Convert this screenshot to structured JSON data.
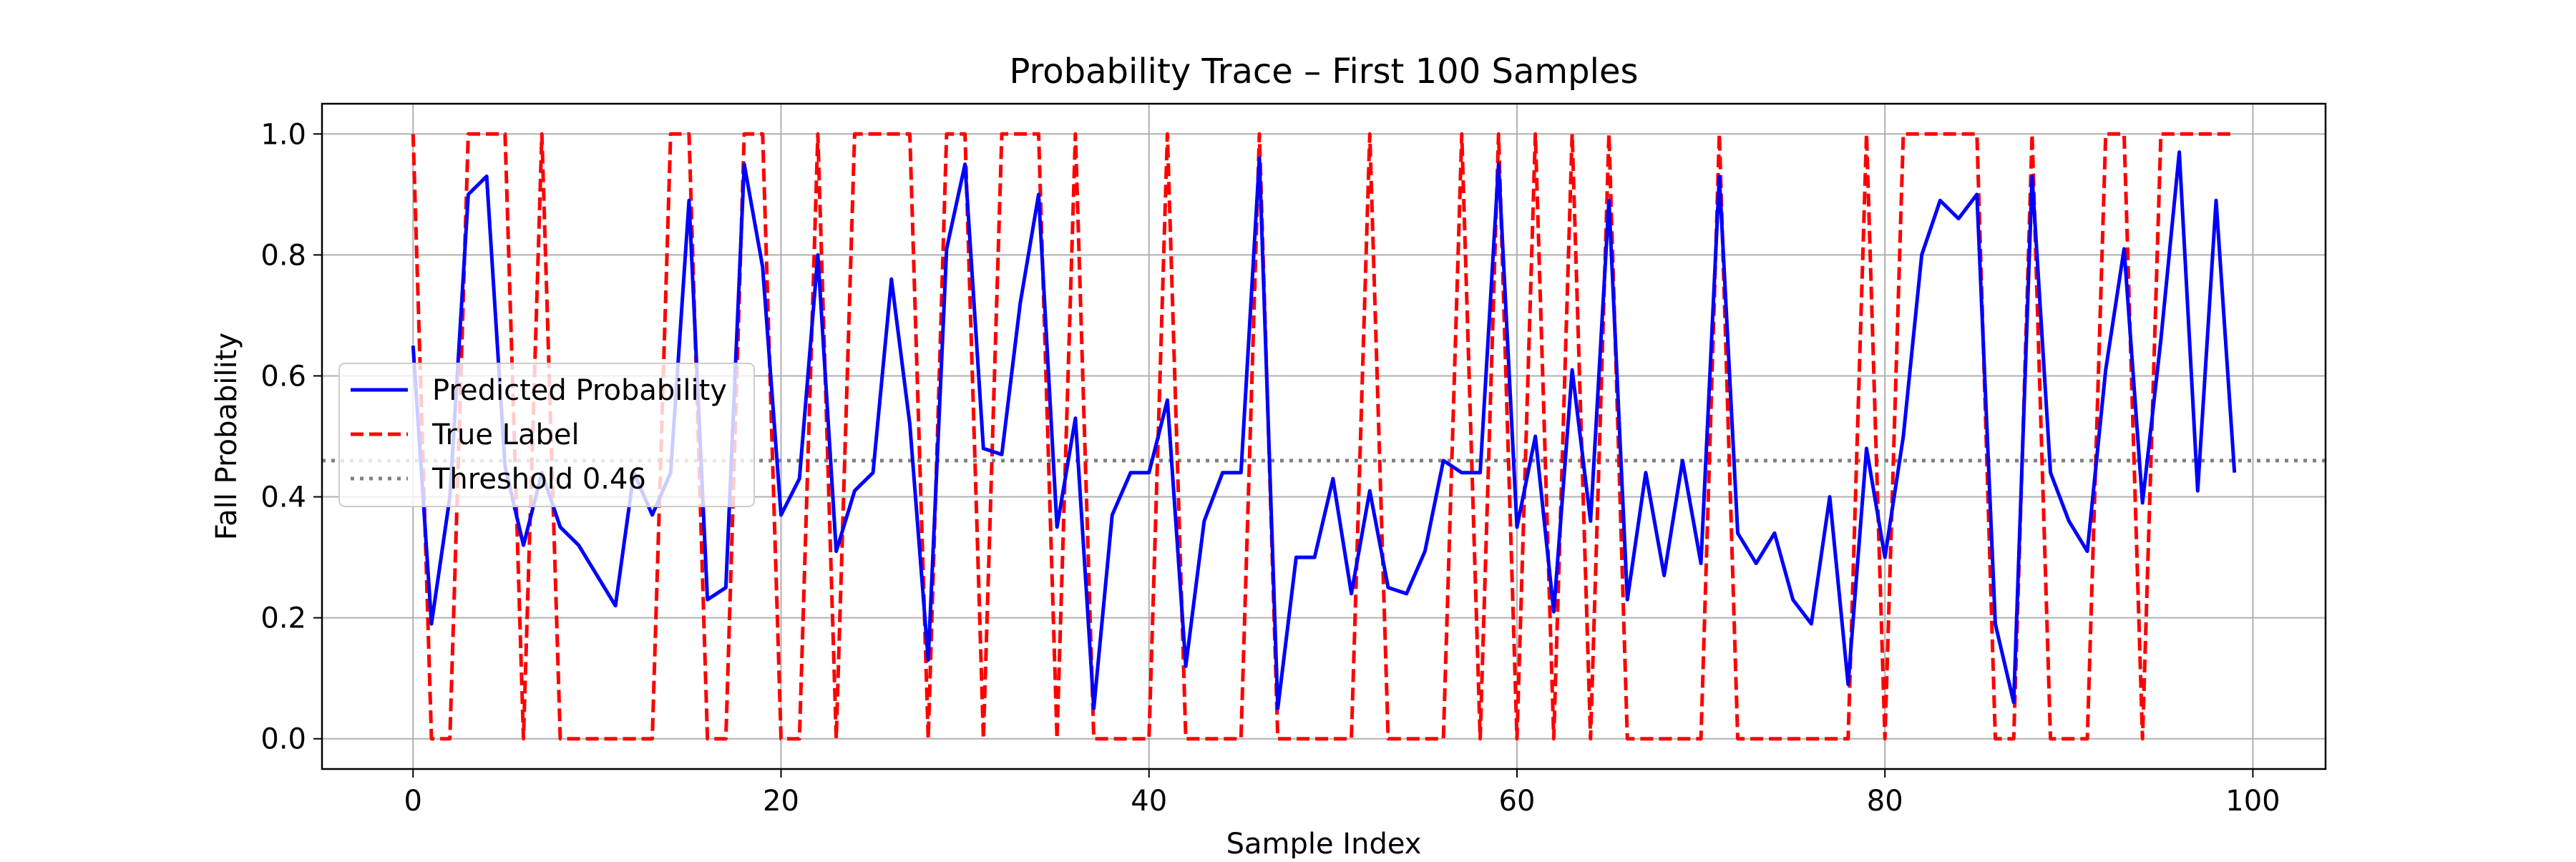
{
  "chart_data": {
    "type": "line",
    "title": "Probability Trace – First 100 Samples",
    "xlabel": "Sample Index",
    "ylabel": "Fall Probability",
    "xlim": [
      -4.95,
      103.95
    ],
    "ylim": [
      -0.05,
      1.05
    ],
    "x_ticks": [
      0,
      20,
      40,
      60,
      80,
      100
    ],
    "y_ticks": [
      0.0,
      0.2,
      0.4,
      0.6,
      0.8,
      1.0
    ],
    "x_tick_labels": [
      "0",
      "20",
      "40",
      "60",
      "80",
      "100"
    ],
    "y_tick_labels": [
      "0.0",
      "0.2",
      "0.4",
      "0.6",
      "0.8",
      "1.0"
    ],
    "grid": true,
    "legend_position": "center-left",
    "series": [
      {
        "name": "Predicted Probability",
        "color": "#0000ff",
        "style": "solid",
        "values": [
          0.65,
          0.19,
          0.4,
          0.9,
          0.93,
          0.45,
          0.32,
          0.44,
          0.35,
          0.32,
          0.27,
          0.22,
          0.44,
          0.37,
          0.44,
          0.89,
          0.23,
          0.25,
          0.95,
          0.78,
          0.37,
          0.43,
          0.8,
          0.31,
          0.41,
          0.44,
          0.76,
          0.52,
          0.13,
          0.81,
          0.95,
          0.48,
          0.47,
          0.72,
          0.9,
          0.35,
          0.53,
          0.05,
          0.37,
          0.44,
          0.44,
          0.56,
          0.12,
          0.36,
          0.44,
          0.44,
          0.96,
          0.05,
          0.3,
          0.3,
          0.43,
          0.24,
          0.41,
          0.25,
          0.24,
          0.31,
          0.46,
          0.44,
          0.44,
          0.95,
          0.35,
          0.5,
          0.21,
          0.61,
          0.36,
          0.89,
          0.23,
          0.44,
          0.27,
          0.46,
          0.29,
          0.93,
          0.34,
          0.29,
          0.34,
          0.23,
          0.19,
          0.4,
          0.09,
          0.48,
          0.3,
          0.5,
          0.8,
          0.89,
          0.86,
          0.9,
          0.19,
          0.06,
          0.93,
          0.44,
          0.36,
          0.31,
          0.61,
          0.81,
          0.39,
          0.66,
          0.97,
          0.41,
          0.89,
          0.44
        ]
      },
      {
        "name": "True Label",
        "color": "#ff0000",
        "style": "dashed",
        "values": [
          1,
          0,
          0,
          1,
          1,
          1,
          0,
          1,
          0,
          0,
          0,
          0,
          0,
          0,
          1,
          1,
          0,
          0,
          1,
          1,
          0,
          0,
          1,
          0,
          1,
          1,
          1,
          1,
          0,
          1,
          1,
          0,
          1,
          1,
          1,
          0,
          1,
          0,
          0,
          0,
          0,
          1,
          0,
          0,
          0,
          0,
          1,
          0,
          0,
          0,
          0,
          0,
          1,
          0,
          0,
          0,
          0,
          1,
          0,
          1,
          0,
          1,
          0,
          1,
          0,
          1,
          0,
          0,
          0,
          0,
          0,
          1,
          0,
          0,
          0,
          0,
          0,
          0,
          0,
          1,
          0,
          1,
          1,
          1,
          1,
          1,
          0,
          0,
          1,
          0,
          0,
          0,
          1,
          1,
          0,
          1,
          1,
          1,
          1,
          1
        ]
      },
      {
        "name": "Threshold 0.46",
        "color": "#808080",
        "style": "dotted",
        "hline": 0.46
      }
    ]
  }
}
